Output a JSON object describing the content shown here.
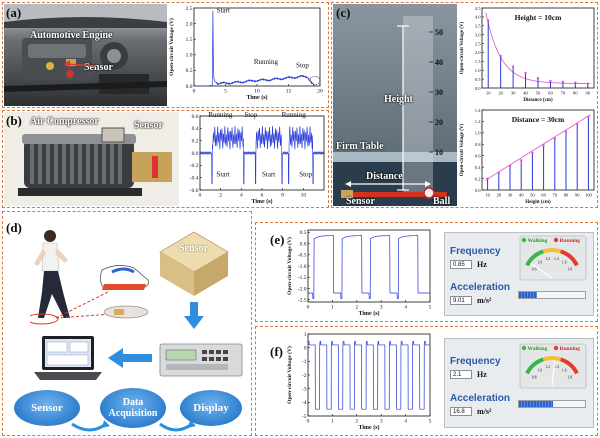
{
  "panels": {
    "a": {
      "label": "(a)",
      "photo_labels": [
        "Automotive Engine",
        "Sensor"
      ],
      "chart_title_labels": [
        "Start",
        "Running",
        "Stop"
      ]
    },
    "b": {
      "label": "(b)",
      "photo_labels": [
        "Air Compressor",
        "Sensor"
      ],
      "chart_title_labels": [
        "Running",
        "Stop",
        "Running",
        "Start",
        "Start",
        "Stop"
      ]
    },
    "c": {
      "label": "(c)",
      "photo_labels": [
        "Height",
        "Firm Table",
        "Distance",
        "Sensor",
        "Ball"
      ]
    },
    "d": {
      "label": "(d)",
      "labels": [
        "Sensor"
      ],
      "flow": [
        "Sensor",
        "Data Acquisition",
        "Display"
      ]
    },
    "e": {
      "label": "(e)",
      "ui": {
        "frequency_title": "Frequency",
        "frequency_value": "0.85",
        "frequency_unit": "Hz",
        "walking": "Walking",
        "running": "Running",
        "acceleration_title": "Acceleration",
        "acceleration_value": "9.01",
        "acceleration_unit": "m/s²",
        "bar_fraction": 0.28
      }
    },
    "f": {
      "label": "(f)",
      "ui": {
        "frequency_title": "Frequency",
        "frequency_value": "2.1",
        "frequency_unit": "Hz",
        "walking": "Walking",
        "running": "Running",
        "acceleration_title": "Acceleration",
        "acceleration_value": "16.8",
        "acceleration_unit": "m/s²",
        "bar_fraction": 0.52
      }
    }
  },
  "gauge_ticks": [
    "0.8",
    "1.0",
    "1.2",
    "1.4",
    "1.6",
    "1.8"
  ],
  "chart_data": [
    {
      "id": "a",
      "type": "line",
      "xlabel": "Time (s)",
      "ylabel": "Open-circuit Voltage (V)",
      "xlim": [
        0,
        20
      ],
      "ylim": [
        0,
        2.5
      ],
      "xticks": [
        0,
        5,
        10,
        15,
        20
      ],
      "yticks": [
        0.0,
        0.5,
        1.0,
        1.5,
        2.0,
        2.5
      ],
      "annotations": [
        "Start",
        "Running",
        "Stop"
      ],
      "x": [
        0,
        2,
        2.9,
        3.0,
        3.05,
        3.15,
        3.4,
        4,
        6,
        8,
        10,
        12,
        14,
        16,
        17,
        18,
        19,
        19.5,
        20
      ],
      "y": [
        0.0,
        0.0,
        0.02,
        2.4,
        1.2,
        0.25,
        0.1,
        0.08,
        0.1,
        0.14,
        0.18,
        0.2,
        0.24,
        0.28,
        0.3,
        0.3,
        0.02,
        0.0,
        0.0
      ]
    },
    {
      "id": "b",
      "type": "line",
      "xlabel": "Time (s)",
      "ylabel": "",
      "xlim": [
        0,
        12
      ],
      "ylim": [
        -0.6,
        0.6
      ],
      "xticks": [
        0,
        2,
        4,
        6,
        8,
        10
      ],
      "yticks": [
        -0.6,
        -0.4,
        -0.2,
        0.0,
        0.2,
        0.4,
        0.6
      ],
      "annotations": [
        "Running",
        "Stop",
        "Running",
        "Start",
        "Start",
        "Stop"
      ],
      "segments": [
        {
          "start": 1.2,
          "end": 4.2
        },
        {
          "start": 5.4,
          "end": 7.9
        },
        {
          "start": 8.6,
          "end": 10.9
        }
      ]
    },
    {
      "id": "c_top",
      "type": "line",
      "title": "Height = 10cm",
      "xlabel": "Distance (cm)",
      "ylabel": "Open-circuit Voltage (V)",
      "xlim": [
        5,
        95
      ],
      "ylim": [
        0,
        4.5
      ],
      "xticks": [
        10,
        20,
        30,
        40,
        50,
        60,
        70,
        80,
        90
      ],
      "yticks": [
        0.0,
        0.5,
        1.0,
        1.5,
        2.0,
        2.5,
        3.0,
        3.5,
        4.0,
        4.5
      ],
      "x": [
        10,
        20,
        30,
        40,
        50,
        60,
        70,
        80,
        90
      ],
      "y": [
        3.8,
        1.8,
        1.2,
        0.85,
        0.55,
        0.4,
        0.35,
        0.3,
        0.25
      ],
      "fit": "exponential-decay"
    },
    {
      "id": "c_bottom",
      "type": "line",
      "title": "Distance = 30cm",
      "xlabel": "Height (cm)",
      "ylabel": "Open-circuit Voltage (V)",
      "xlim": [
        5,
        105
      ],
      "ylim": [
        0,
        1.4
      ],
      "xticks": [
        10,
        20,
        30,
        40,
        50,
        60,
        70,
        80,
        90,
        100
      ],
      "yticks": [
        0.0,
        0.2,
        0.4,
        0.6,
        0.8,
        1.0,
        1.2,
        1.4
      ],
      "x": [
        10,
        20,
        30,
        40,
        50,
        60,
        70,
        80,
        90,
        100
      ],
      "y": [
        0.2,
        0.3,
        0.42,
        0.52,
        0.65,
        0.78,
        0.9,
        1.02,
        1.15,
        1.28
      ],
      "fit": "linear"
    },
    {
      "id": "e",
      "type": "line",
      "xlabel": "Time (s)",
      "ylabel": "Open-circuit Voltage (V)",
      "xlim": [
        0,
        5
      ],
      "ylim": [
        -2.6,
        0.6
      ],
      "xticks": [
        0,
        1,
        2,
        3,
        4,
        5
      ],
      "yticks": [
        -2.5,
        -2.0,
        -1.5,
        -1.0,
        -0.5,
        0.0,
        0.5
      ],
      "high": 0.35,
      "low": -2.2,
      "high_intervals": [
        [
          0.25,
          1.05
        ],
        [
          1.4,
          2.2
        ],
        [
          2.55,
          3.35
        ],
        [
          3.7,
          4.5
        ]
      ]
    },
    {
      "id": "f",
      "type": "line",
      "xlabel": "Time (s)",
      "ylabel": "Open-circuit Voltage (V)",
      "xlim": [
        0,
        5
      ],
      "ylim": [
        -5,
        1
      ],
      "xticks": [
        0,
        1,
        2,
        3,
        4,
        5
      ],
      "yticks": [
        -5,
        -4,
        -3,
        -2,
        -1,
        0,
        1
      ],
      "high": 0.2,
      "low": -4.5,
      "period": 0.476,
      "duty_low": 0.38
    }
  ]
}
